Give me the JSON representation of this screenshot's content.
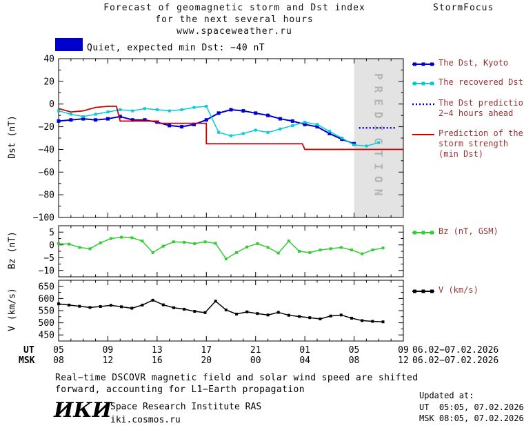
{
  "header": {
    "title_line1": "Forecast of geomagnetic storm and Dst index",
    "title_line2": "for the next several hours",
    "title_line3": "www.spaceweather.ru",
    "brand": "StormFocus"
  },
  "status_banner": {
    "label": "Quiet, expected min Dst: −40 nT",
    "swatch_color": "#0000cc"
  },
  "legend": {
    "text_color": "#993333",
    "entries": [
      {
        "id": "dst-kyoto",
        "style": "line-squares",
        "color": "#0000cc",
        "lines": [
          "The Dst, Kyoto"
        ]
      },
      {
        "id": "recovered-dst",
        "style": "line-squares",
        "color": "#00ccda",
        "lines": [
          "The recovered Dst"
        ]
      },
      {
        "id": "dst-prediction",
        "style": "dotted",
        "color": "#0000cc",
        "lines": [
          "The Dst prediction",
          "2−4 hours ahead"
        ]
      },
      {
        "id": "storm-strength",
        "style": "line",
        "color": "#cc0000",
        "lines": [
          "Prediction of the",
          "storm strength",
          "(min Dst)"
        ]
      },
      {
        "id": "bz",
        "style": "line-squares",
        "color": "#33cc33",
        "lines": [
          "Bz (nT, GSM)"
        ]
      },
      {
        "id": "v",
        "style": "line-squares",
        "color": "#000000",
        "lines": [
          "V (km/s)"
        ]
      }
    ]
  },
  "chart_data": [
    {
      "type": "line",
      "panel": "dst",
      "ylabel": "Dst (nT)",
      "ylim": [
        -100,
        40
      ],
      "yticks": [
        40,
        20,
        0,
        -20,
        -40,
        -60,
        -80,
        -100
      ],
      "yminor": 10,
      "xlim": [
        5,
        33
      ],
      "xticks": [
        5,
        9,
        13,
        17,
        21,
        25,
        29,
        33
      ],
      "xminor": 1,
      "prediction_region": {
        "from": 29,
        "to": 33,
        "label": "PREDICTION"
      },
      "series": [
        {
          "name": "The Dst, Kyoto",
          "color": "#0000cc",
          "marker": "square",
          "marker_size": 5,
          "line_width": 2,
          "x": [
            5,
            6,
            7,
            8,
            9,
            10,
            11,
            12,
            13,
            14,
            15,
            16,
            17,
            18,
            19,
            20,
            21,
            22,
            23,
            24,
            25,
            26,
            27,
            28,
            29
          ],
          "y": [
            -15,
            -14,
            -13,
            -14,
            -13,
            -11,
            -14,
            -14,
            -16,
            -19,
            -20,
            -18,
            -14,
            -8,
            -5,
            -6,
            -8,
            -10,
            -13,
            -15,
            -18,
            -20,
            -26,
            -31,
            -35
          ]
        },
        {
          "name": "The recovered Dst",
          "color": "#00ccda",
          "marker": "square",
          "marker_size": 4,
          "line_width": 1.5,
          "x": [
            5,
            6,
            7,
            8,
            9,
            10,
            11,
            12,
            13,
            14,
            15,
            16,
            17,
            18,
            19,
            20,
            21,
            22,
            23,
            24,
            25,
            26,
            27,
            28,
            29,
            30,
            31
          ],
          "y": [
            -6,
            -9,
            -11,
            -9,
            -7,
            -5,
            -6,
            -4,
            -5,
            -6,
            -5,
            -3,
            -2,
            -25,
            -28,
            -26,
            -23,
            -25,
            -22,
            -19,
            -16,
            -18,
            -24,
            -30,
            -36,
            -37,
            -34
          ]
        },
        {
          "name": "The Dst prediction 2−4 hours ahead",
          "color": "#0000cc",
          "style": "dotted",
          "line_width": 2.5,
          "x": [
            29.4,
            32.4
          ],
          "y": [
            -21,
            -21
          ]
        },
        {
          "name": "Prediction of the storm strength (min Dst)",
          "color": "#cc0000",
          "line_width": 1.8,
          "x": [
            5,
            6,
            7,
            8,
            9,
            9.7,
            10,
            13,
            13,
            17,
            17,
            24.8,
            25,
            33
          ],
          "y": [
            -4,
            -7,
            -6,
            -3,
            -2,
            -2,
            -15,
            -15,
            -17,
            -17,
            -35,
            -35,
            -40,
            -40
          ]
        }
      ]
    },
    {
      "type": "line",
      "panel": "bz",
      "ylabel": "Bz (nT)",
      "ylim": [
        -12.5,
        7.5
      ],
      "yticks": [
        5,
        0,
        -5,
        -10
      ],
      "yminor": 2.5,
      "xlim": [
        5,
        33
      ],
      "xticks": [
        5,
        9,
        13,
        17,
        21,
        25,
        29,
        33
      ],
      "xminor": 1,
      "series": [
        {
          "name": "Bz (nT, GSM)",
          "color": "#33cc33",
          "marker": "square",
          "marker_size": 4,
          "line_width": 1.5,
          "x": [
            5,
            5.85,
            6.7,
            7.55,
            8.4,
            9.25,
            10.1,
            10.95,
            11.8,
            12.65,
            13.5,
            14.35,
            15.2,
            16.05,
            16.9,
            17.75,
            18.6,
            19.45,
            20.3,
            21.15,
            22,
            22.85,
            23.7,
            24.55,
            25.4,
            26.25,
            27.1,
            27.95,
            28.8,
            29.65,
            30.5,
            31.35
          ],
          "y": [
            0.5,
            0.3,
            -1,
            -1.5,
            0.8,
            2.5,
            3,
            2.8,
            1.5,
            -3,
            -0.5,
            1.2,
            1,
            0.5,
            1.2,
            0.6,
            -5.5,
            -3,
            -0.8,
            0.5,
            -1,
            -3.2,
            1.5,
            -2.5,
            -3,
            -2,
            -1.5,
            -1,
            -2,
            -3.5,
            -2,
            -1.2
          ]
        }
      ]
    },
    {
      "type": "line",
      "panel": "v",
      "ylabel": "V (km/s)",
      "ylim": [
        425,
        675
      ],
      "yticks": [
        650,
        600,
        550,
        500,
        450
      ],
      "yminor": 25,
      "xlim": [
        5,
        33
      ],
      "xticks": [
        5,
        9,
        13,
        17,
        21,
        25,
        29,
        33
      ],
      "xminor": 1,
      "series": [
        {
          "name": "V (km/s)",
          "color": "#000000",
          "marker": "square",
          "marker_size": 4,
          "line_width": 1.5,
          "x": [
            5,
            5.85,
            6.7,
            7.55,
            8.4,
            9.25,
            10.1,
            10.95,
            11.8,
            12.65,
            13.5,
            14.35,
            15.2,
            16.05,
            16.9,
            17.75,
            18.6,
            19.45,
            20.3,
            21.15,
            22,
            22.85,
            23.7,
            24.55,
            25.4,
            26.25,
            27.1,
            27.95,
            28.8,
            29.65,
            30.5,
            31.35
          ],
          "y": [
            578,
            573,
            568,
            563,
            567,
            572,
            566,
            560,
            573,
            593,
            574,
            562,
            556,
            547,
            542,
            589,
            553,
            536,
            545,
            538,
            532,
            543,
            531,
            526,
            521,
            516,
            528,
            532,
            519,
            509,
            506,
            504
          ]
        }
      ]
    }
  ],
  "xaxis": {
    "ut_label": "UT",
    "msk_label": "MSK",
    "ut_ticks": [
      "05",
      "09",
      "13",
      "17",
      "21",
      "01",
      "05",
      "09"
    ],
    "msk_ticks": [
      "08",
      "12",
      "16",
      "20",
      "00",
      "04",
      "08",
      "12"
    ],
    "ut_daterange": "06.02−07.02.2026",
    "msk_daterange": "06.02−07.02.2026"
  },
  "footnote": {
    "line1": "Real−time DSCOVR magnetic field and solar wind speed are shifted",
    "line2": "forward, accounting for L1−Earth propagation"
  },
  "footer": {
    "logo_text": "ИКИ",
    "institute": "Space Research Institute RAS",
    "site": "iki.cosmos.ru",
    "updated_label": "Updated at:",
    "updated_ut": "UT  05:05, 07.02.2026",
    "updated_msk": "MSK 08:05, 07.02.2026"
  }
}
